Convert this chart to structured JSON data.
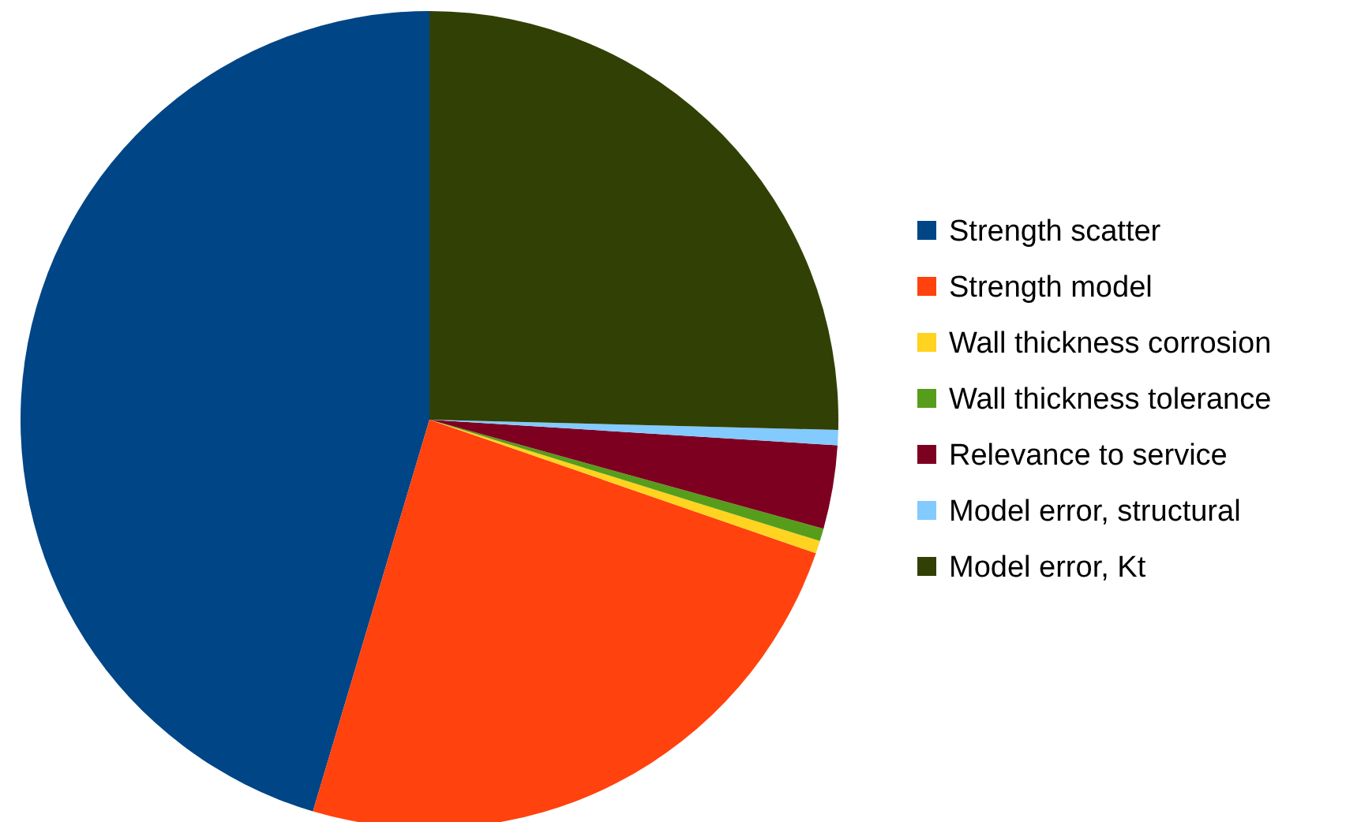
{
  "chart_data": {
    "type": "pie",
    "categories": [
      "Strength scatter",
      "Strength model",
      "Wall thickness corrosion",
      "Wall thickness tolerance",
      "Relevance to service",
      "Model error, structural",
      "Model error, Kt"
    ],
    "values": [
      45.4,
      24.3,
      0.5,
      0.5,
      3.3,
      0.6,
      25.4
    ],
    "colors": [
      "#004586",
      "#ff420e",
      "#ffd320",
      "#579d1c",
      "#7e0021",
      "#83caff",
      "#314004"
    ],
    "legend": "right"
  }
}
